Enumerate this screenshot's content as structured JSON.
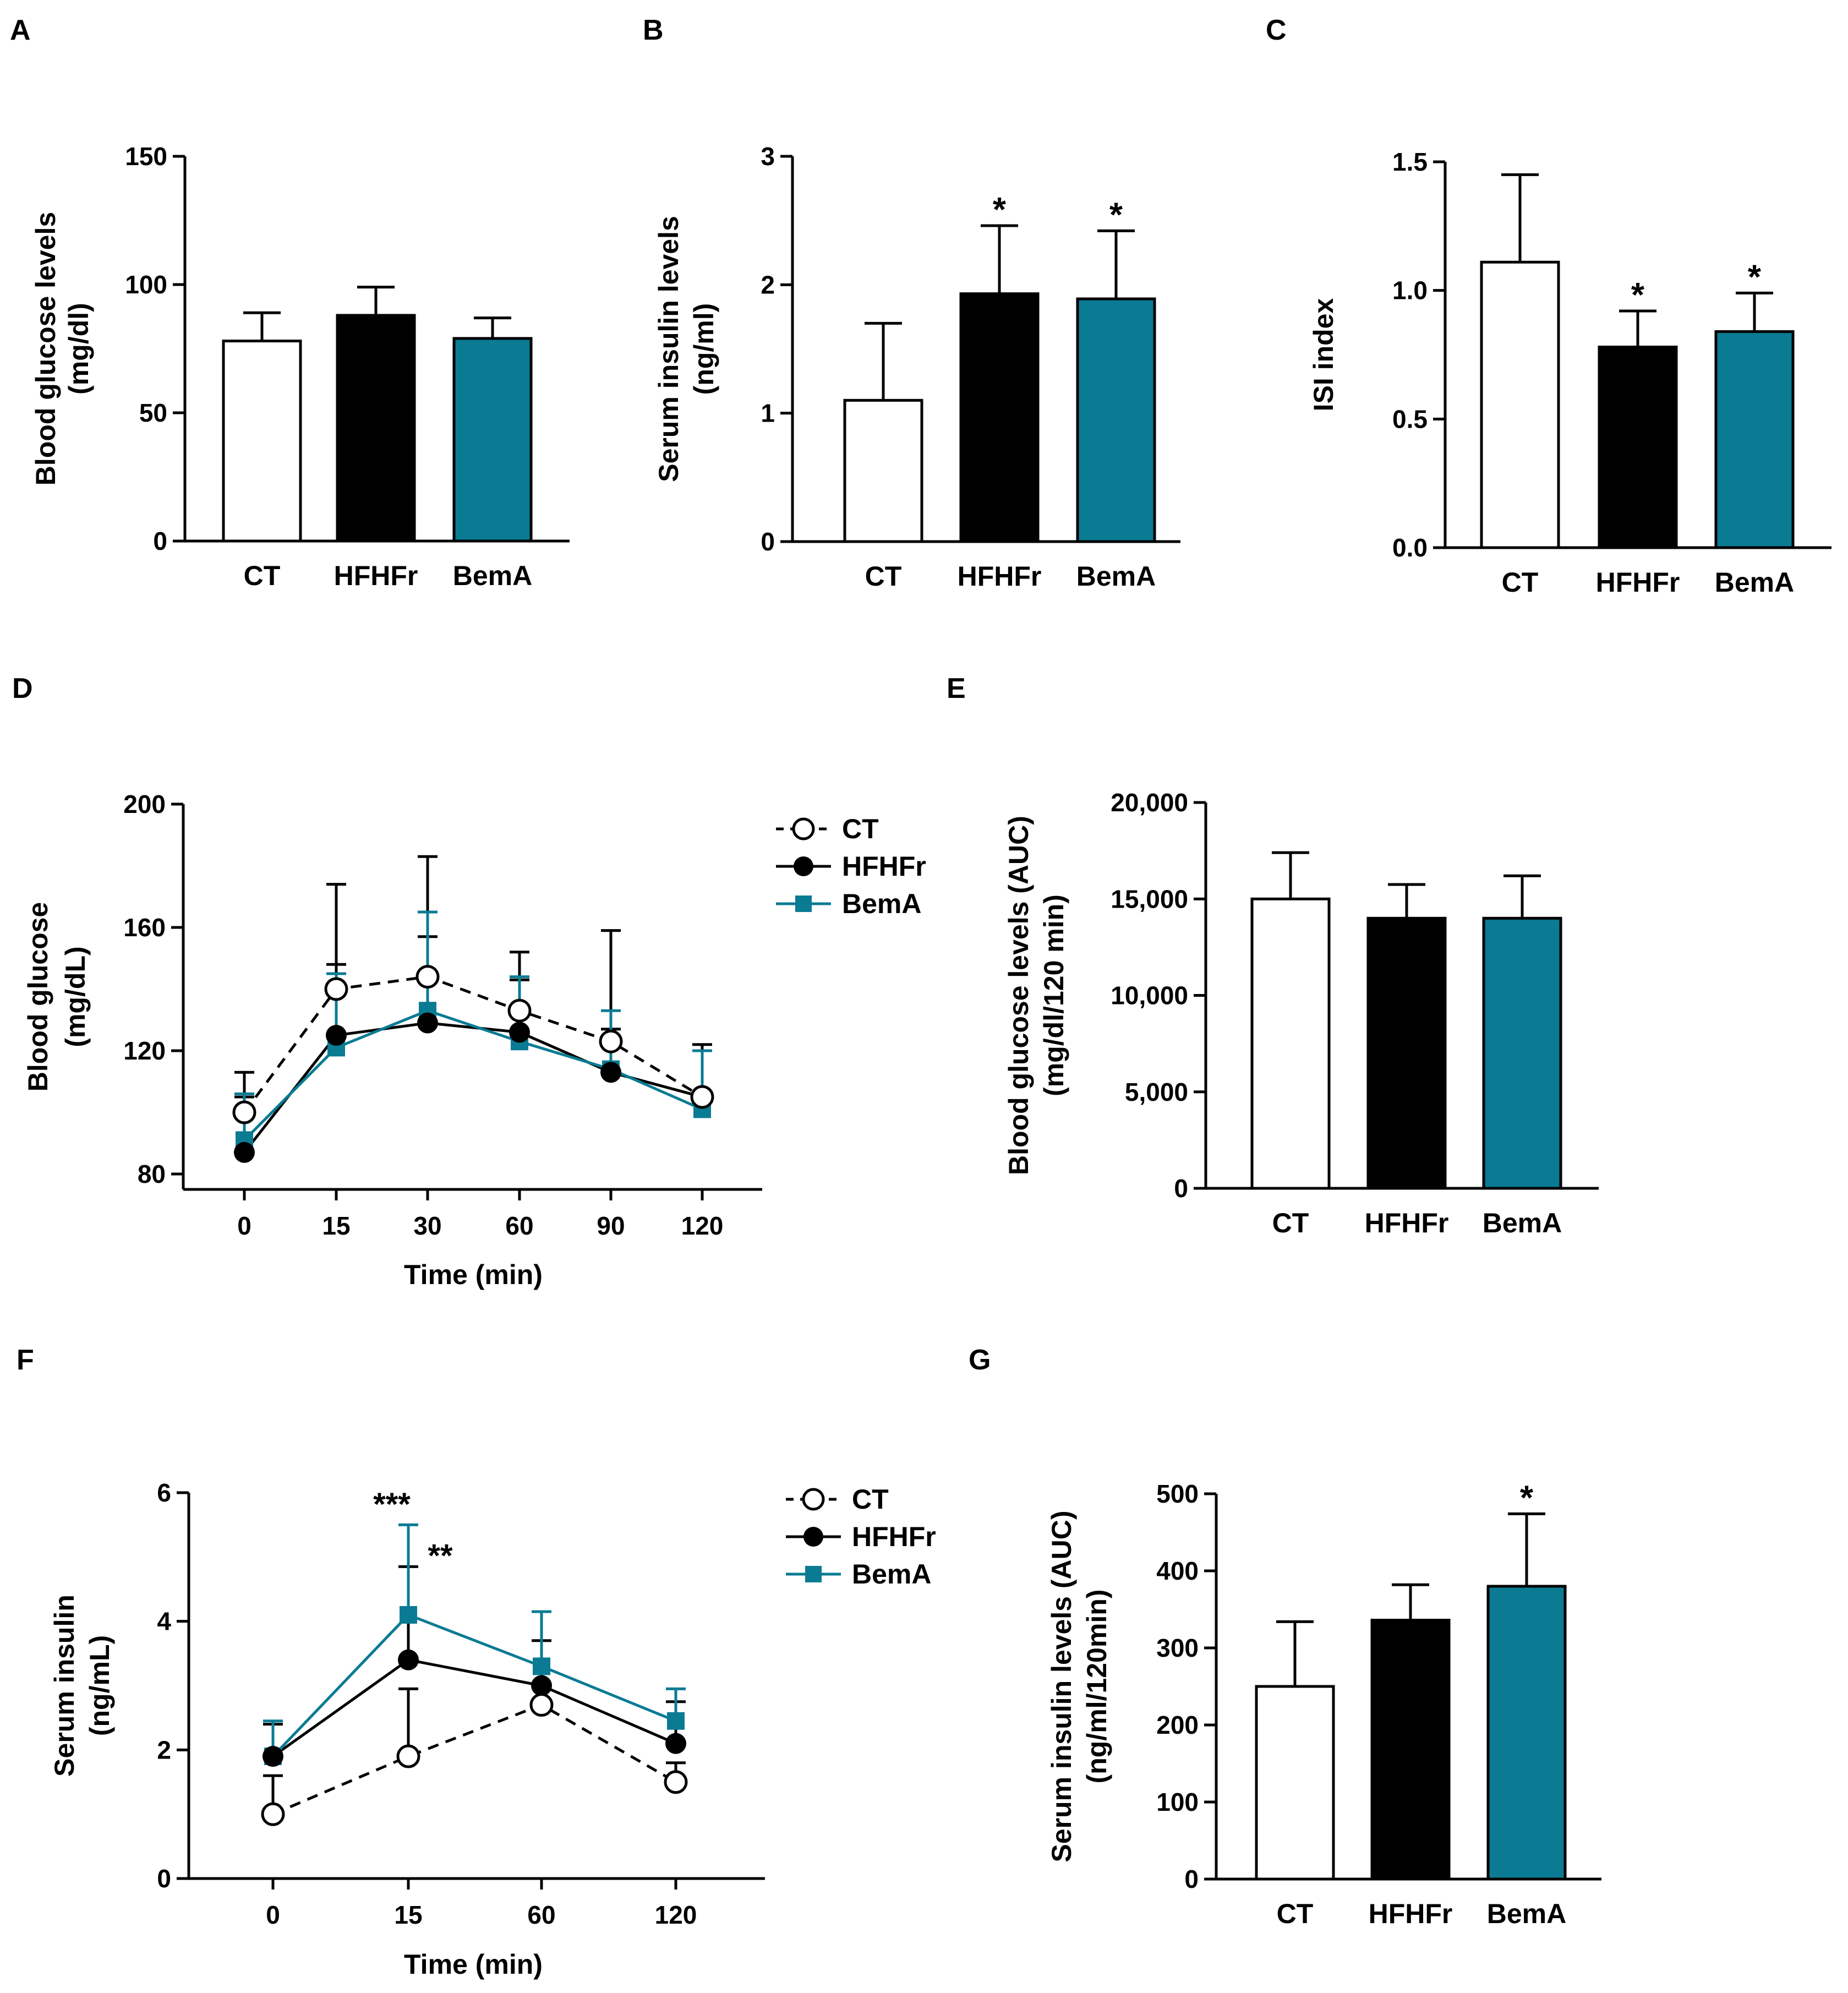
{
  "colors": {
    "ct": "#ffffff",
    "hfhfr": "#000000",
    "bema": "#0a7b93",
    "axis": "#000000"
  },
  "chart_data": [
    {
      "id": "A",
      "panel_label": "A",
      "type": "bar",
      "ylabel": [
        "Blood glucose levels",
        "(mg/dl)"
      ],
      "categories": [
        "CT",
        "HFHFr",
        "BemA"
      ],
      "values": [
        78,
        88,
        79
      ],
      "errors": [
        11,
        11,
        8
      ],
      "stars": [
        "",
        "",
        ""
      ],
      "ylim": [
        0,
        150
      ],
      "yticks": [
        0,
        50,
        100,
        150
      ],
      "ytick_labels": [
        "0",
        "50",
        "100",
        "150"
      ]
    },
    {
      "id": "B",
      "panel_label": "B",
      "type": "bar",
      "ylabel": [
        "Serum insulin levels",
        "(ng/ml)"
      ],
      "categories": [
        "CT",
        "HFHFr",
        "BemA"
      ],
      "values": [
        1.1,
        1.93,
        1.89
      ],
      "errors": [
        0.6,
        0.53,
        0.53
      ],
      "stars": [
        "",
        "*",
        "*"
      ],
      "ylim": [
        0,
        3
      ],
      "yticks": [
        0,
        1,
        2,
        3
      ],
      "ytick_labels": [
        "0",
        "1",
        "2",
        "3"
      ]
    },
    {
      "id": "C",
      "panel_label": "C",
      "type": "bar",
      "ylabel": [
        "ISI index"
      ],
      "categories": [
        "CT",
        "HFHFr",
        "BemA"
      ],
      "values": [
        1.11,
        0.78,
        0.84
      ],
      "errors": [
        0.34,
        0.14,
        0.15
      ],
      "stars": [
        "",
        "*",
        "*"
      ],
      "ylim": [
        0,
        1.5
      ],
      "yticks": [
        0,
        0.5,
        1.0,
        1.5
      ],
      "ytick_labels": [
        "0.0",
        "0.5",
        "1.0",
        "1.5"
      ]
    },
    {
      "id": "D",
      "panel_label": "D",
      "type": "line",
      "ylabel": [
        "Blood glucose",
        "(mg/dL)"
      ],
      "xlabel": "Time (min)",
      "x_labels": [
        "0",
        "15",
        "30",
        "60",
        "90",
        "120"
      ],
      "ylim": [
        75,
        200
      ],
      "yticks": [
        80,
        120,
        160,
        200
      ],
      "ytick_labels": [
        "80",
        "120",
        "160",
        "200"
      ],
      "legend": [
        "CT",
        "HFHFr",
        "BemA"
      ],
      "series": [
        {
          "name": "CT",
          "style": "ct",
          "values": [
            100,
            140,
            144,
            133,
            123,
            105
          ],
          "errors": [
            13,
            34,
            39,
            19,
            36,
            17
          ]
        },
        {
          "name": "HFHFr",
          "style": "hfhfr",
          "values": [
            87,
            125,
            129,
            126,
            113,
            105
          ],
          "errors": [
            18,
            23,
            28,
            17,
            14,
            15
          ]
        },
        {
          "name": "BemA",
          "style": "bema",
          "values": [
            91,
            121,
            133,
            123,
            114,
            101
          ],
          "errors": [
            15,
            24,
            32,
            21,
            19,
            19
          ]
        }
      ],
      "annotations": []
    },
    {
      "id": "E",
      "panel_label": "E",
      "type": "bar",
      "ylabel": [
        "Blood glucose levels (AUC)",
        "(mg/dl/120 min)"
      ],
      "categories": [
        "CT",
        "HFHFr",
        "BemA"
      ],
      "values": [
        15000,
        14000,
        14000
      ],
      "errors": [
        2400,
        1750,
        2200
      ],
      "stars": [
        "",
        "",
        ""
      ],
      "ylim": [
        0,
        20000
      ],
      "yticks": [
        0,
        5000,
        10000,
        15000,
        20000
      ],
      "ytick_labels": [
        "0",
        "5,000",
        "10,000",
        "15,000",
        "20,000"
      ]
    },
    {
      "id": "F",
      "panel_label": "F",
      "type": "line",
      "ylabel": [
        "Serum insulin",
        "(ng/mL)"
      ],
      "xlabel": "Time (min)",
      "x_labels": [
        "0",
        "15",
        "60",
        "120"
      ],
      "ylim": [
        0,
        6
      ],
      "yticks": [
        0,
        2,
        4,
        6
      ],
      "ytick_labels": [
        "0",
        "2",
        "4",
        "6"
      ],
      "legend": [
        "CT",
        "HFHFr",
        "BemA"
      ],
      "series": [
        {
          "name": "CT",
          "style": "ct",
          "values": [
            1.0,
            1.9,
            2.7,
            1.5
          ],
          "errors": [
            0.6,
            1.05,
            0.3,
            0.3
          ]
        },
        {
          "name": "HFHFr",
          "style": "hfhfr",
          "values": [
            1.9,
            3.4,
            3.0,
            2.1
          ],
          "errors": [
            0.5,
            1.45,
            0.7,
            0.65
          ]
        },
        {
          "name": "BemA",
          "style": "bema",
          "values": [
            1.9,
            4.1,
            3.3,
            2.45
          ],
          "errors": [
            0.55,
            1.4,
            0.85,
            0.5
          ]
        }
      ],
      "annotations": [
        {
          "text": "***",
          "x_index": 1,
          "y": 5.65
        },
        {
          "text": "**",
          "x_index": 1,
          "y": 4.85
        }
      ]
    },
    {
      "id": "G",
      "panel_label": "G",
      "type": "bar",
      "ylabel": [
        "Serum insulin levels (AUC)",
        "(ng/ml/120min)"
      ],
      "categories": [
        "CT",
        "HFHFr",
        "BemA"
      ],
      "values": [
        250,
        336,
        380
      ],
      "errors": [
        84,
        46,
        94
      ],
      "stars": [
        "",
        "",
        "*"
      ],
      "ylim": [
        0,
        500
      ],
      "yticks": [
        0,
        100,
        200,
        300,
        400,
        500
      ],
      "ytick_labels": [
        "0",
        "100",
        "200",
        "300",
        "400",
        "500"
      ]
    }
  ]
}
